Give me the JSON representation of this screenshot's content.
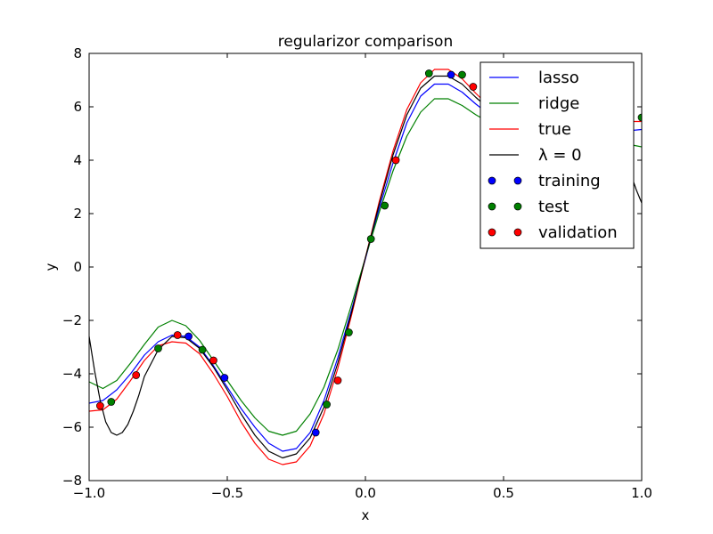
{
  "chart_data": {
    "type": "line",
    "title": "regularizor comparison",
    "xlabel": "x",
    "ylabel": "y",
    "xlim": [
      -1.0,
      1.0
    ],
    "ylim": [
      -8,
      8
    ],
    "xticks": [
      -1.0,
      -0.5,
      0.0,
      0.5,
      1.0
    ],
    "xtick_labels": [
      "−1.0",
      "−0.5",
      "0.0",
      "0.5",
      "1.0"
    ],
    "yticks": [
      -8,
      -6,
      -4,
      -2,
      0,
      2,
      4,
      6,
      8
    ],
    "ytick_labels": [
      "−8",
      "−6",
      "−4",
      "−2",
      "0",
      "2",
      "4",
      "6",
      "8"
    ],
    "grid": false,
    "legend_position": "top-right",
    "series": [
      {
        "name": "lasso",
        "kind": "line",
        "color": "#0000ff",
        "x": [
          -1.0,
          -0.95,
          -0.9,
          -0.85,
          -0.8,
          -0.75,
          -0.7,
          -0.65,
          -0.6,
          -0.55,
          -0.5,
          -0.45,
          -0.4,
          -0.35,
          -0.3,
          -0.25,
          -0.2,
          -0.15,
          -0.1,
          -0.05,
          0.0,
          0.05,
          0.1,
          0.15,
          0.2,
          0.25,
          0.3,
          0.35,
          0.4,
          0.45,
          0.5,
          0.55,
          0.6,
          0.65,
          0.7,
          0.75,
          0.8,
          0.85,
          0.9,
          0.95,
          1.0
        ],
        "y": [
          -5.1,
          -5.0,
          -4.6,
          -4.0,
          -3.3,
          -2.8,
          -2.55,
          -2.6,
          -3.0,
          -3.7,
          -4.5,
          -5.3,
          -6.0,
          -6.6,
          -6.9,
          -6.8,
          -6.2,
          -5.0,
          -3.4,
          -1.6,
          0.3,
          2.2,
          3.9,
          5.4,
          6.4,
          6.85,
          6.85,
          6.55,
          6.1,
          5.7,
          5.4,
          5.25,
          5.2,
          5.2,
          5.2,
          5.15,
          5.1,
          5.1,
          5.1,
          5.1,
          5.15
        ]
      },
      {
        "name": "ridge",
        "kind": "line",
        "color": "#008000",
        "x": [
          -1.0,
          -0.95,
          -0.9,
          -0.85,
          -0.8,
          -0.75,
          -0.7,
          -0.65,
          -0.6,
          -0.55,
          -0.5,
          -0.45,
          -0.4,
          -0.35,
          -0.3,
          -0.25,
          -0.2,
          -0.15,
          -0.1,
          -0.05,
          0.0,
          0.05,
          0.1,
          0.15,
          0.2,
          0.25,
          0.3,
          0.35,
          0.4,
          0.45,
          0.5,
          0.55,
          0.6,
          0.65,
          0.7,
          0.75,
          0.8,
          0.85,
          0.9,
          0.95,
          1.0
        ],
        "y": [
          -4.3,
          -4.55,
          -4.25,
          -3.6,
          -2.9,
          -2.25,
          -2.0,
          -2.2,
          -2.75,
          -3.5,
          -4.25,
          -5.0,
          -5.65,
          -6.15,
          -6.3,
          -6.15,
          -5.5,
          -4.5,
          -3.1,
          -1.4,
          0.35,
          2.05,
          3.6,
          4.9,
          5.8,
          6.3,
          6.3,
          6.05,
          5.7,
          5.4,
          5.15,
          5.0,
          4.95,
          4.95,
          4.95,
          4.9,
          4.85,
          4.8,
          4.7,
          4.6,
          4.5
        ]
      },
      {
        "name": "true",
        "kind": "line",
        "color": "#ff0000",
        "x": [
          -1.0,
          -0.95,
          -0.9,
          -0.85,
          -0.8,
          -0.75,
          -0.7,
          -0.65,
          -0.6,
          -0.55,
          -0.5,
          -0.45,
          -0.4,
          -0.35,
          -0.3,
          -0.25,
          -0.2,
          -0.15,
          -0.1,
          -0.05,
          0.0,
          0.05,
          0.1,
          0.15,
          0.2,
          0.25,
          0.3,
          0.35,
          0.4,
          0.45,
          0.5,
          0.55,
          0.6,
          0.65,
          0.7,
          0.75,
          0.8,
          0.85,
          0.9,
          0.95,
          1.0
        ],
        "y": [
          -5.4,
          -5.35,
          -4.95,
          -4.25,
          -3.5,
          -2.95,
          -2.8,
          -2.85,
          -3.25,
          -4.0,
          -4.85,
          -5.8,
          -6.6,
          -7.2,
          -7.4,
          -7.3,
          -6.7,
          -5.5,
          -3.8,
          -1.8,
          0.35,
          2.45,
          4.35,
          5.9,
          6.9,
          7.4,
          7.4,
          7.05,
          6.5,
          6.0,
          5.7,
          5.55,
          5.5,
          5.45,
          5.45,
          5.45,
          5.45,
          5.45,
          5.45,
          5.45,
          5.45
        ]
      },
      {
        "name": "λ = 0",
        "kind": "line",
        "color": "#000000",
        "x": [
          -1.0,
          -0.98,
          -0.96,
          -0.94,
          -0.92,
          -0.9,
          -0.88,
          -0.86,
          -0.84,
          -0.82,
          -0.8,
          -0.75,
          -0.7,
          -0.65,
          -0.6,
          -0.55,
          -0.5,
          -0.45,
          -0.4,
          -0.35,
          -0.3,
          -0.25,
          -0.2,
          -0.15,
          -0.1,
          -0.05,
          0.0,
          0.05,
          0.1,
          0.15,
          0.2,
          0.25,
          0.3,
          0.35,
          0.4,
          0.45,
          0.5,
          0.55,
          0.6,
          0.65,
          0.7,
          0.75,
          0.8,
          0.85,
          0.9,
          0.92,
          0.94,
          0.96,
          0.98,
          1.0
        ],
        "y": [
          -2.6,
          -3.9,
          -5.0,
          -5.8,
          -6.2,
          -6.3,
          -6.2,
          -5.9,
          -5.4,
          -4.8,
          -4.1,
          -3.1,
          -2.6,
          -2.65,
          -3.05,
          -3.75,
          -4.6,
          -5.5,
          -6.3,
          -6.9,
          -7.15,
          -7.0,
          -6.4,
          -5.25,
          -3.6,
          -1.7,
          0.35,
          2.35,
          4.2,
          5.7,
          6.7,
          7.15,
          7.15,
          6.85,
          6.35,
          5.9,
          5.6,
          5.45,
          5.4,
          5.4,
          5.4,
          5.4,
          5.35,
          5.25,
          4.95,
          4.6,
          4.1,
          3.5,
          2.9,
          2.4
        ]
      },
      {
        "name": "training",
        "kind": "scatter",
        "color": "#0000ff",
        "x": [
          -0.64,
          -0.51,
          -0.18,
          0.31
        ],
        "y": [
          -2.6,
          -4.15,
          -6.2,
          7.2
        ]
      },
      {
        "name": "test",
        "kind": "scatter",
        "color": "#008000",
        "x": [
          -0.92,
          -0.75,
          -0.59,
          -0.14,
          -0.06,
          0.02,
          0.07,
          0.23,
          0.35,
          1.0
        ],
        "y": [
          -5.05,
          -3.05,
          -3.1,
          -5.15,
          -2.45,
          1.05,
          2.3,
          7.25,
          7.2,
          5.6
        ]
      },
      {
        "name": "validation",
        "kind": "scatter",
        "color": "#ff0000",
        "x": [
          -0.96,
          -0.83,
          -0.68,
          -0.55,
          -0.1,
          0.11,
          0.39
        ],
        "y": [
          -5.2,
          -4.05,
          -2.55,
          -3.5,
          -4.25,
          4.0,
          6.75
        ]
      }
    ]
  }
}
